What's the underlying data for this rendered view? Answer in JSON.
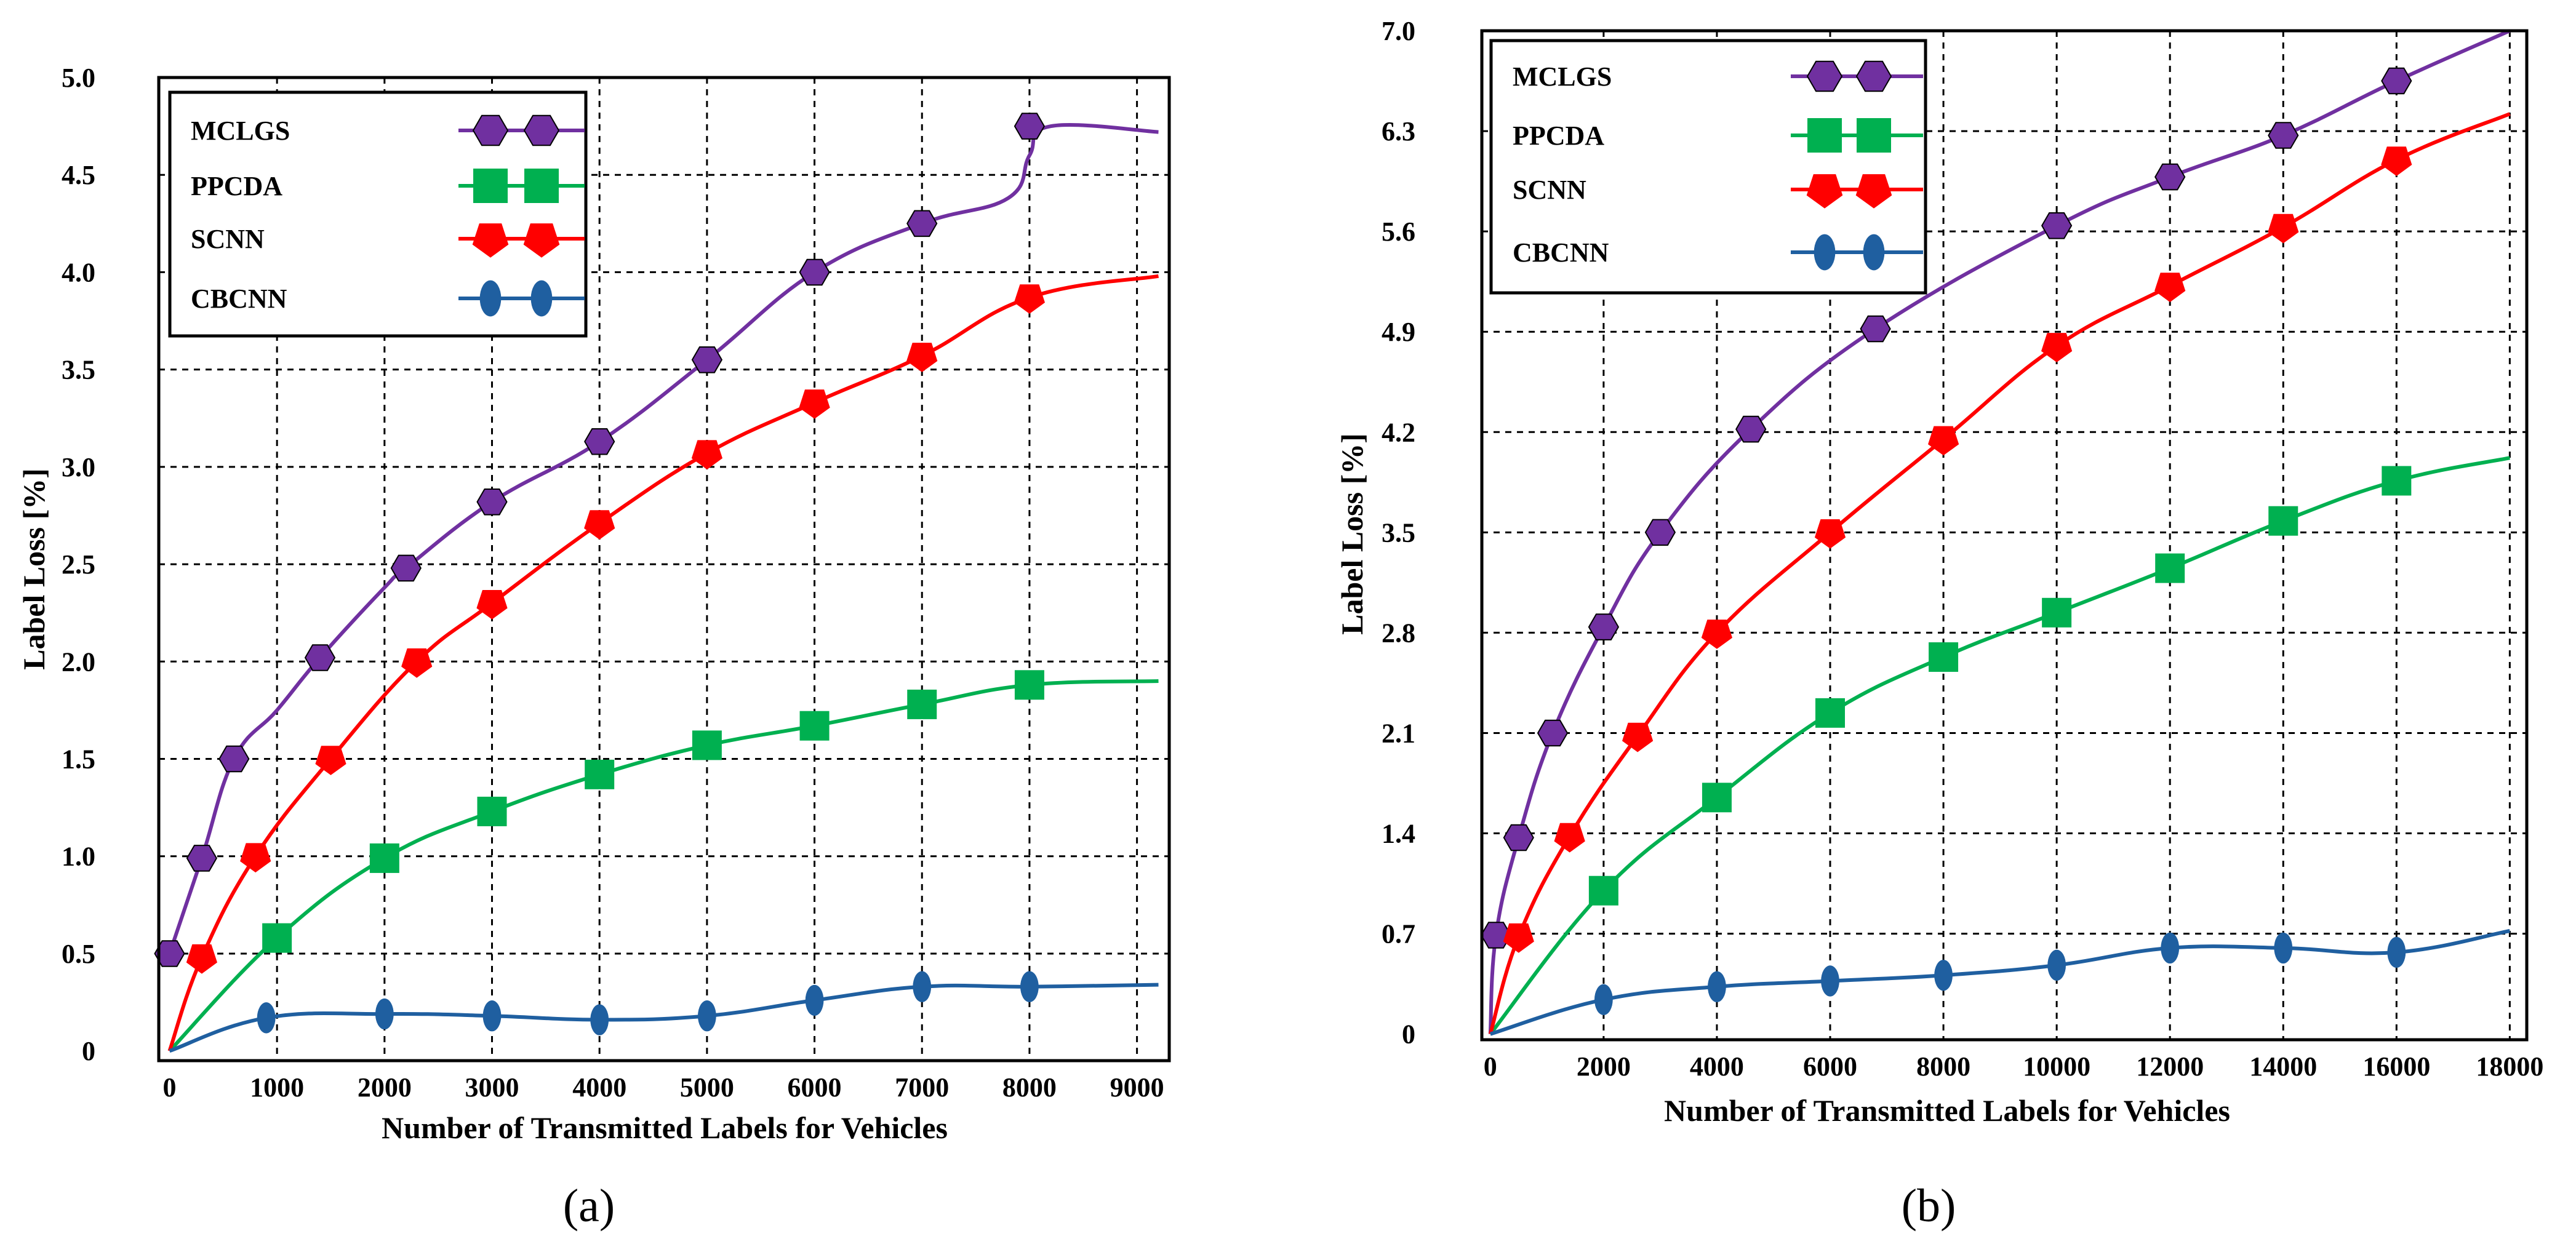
{
  "chart_data": [
    {
      "type": "line",
      "panel": "a",
      "caption": "(a)",
      "xlabel": "Number of Transmitted Labels for Vehicles",
      "ylabel": "Label Loss [%]",
      "xlim": [
        -100,
        9300
      ],
      "ylim": [
        -0.05,
        5.0
      ],
      "xticks": [
        0,
        1000,
        2000,
        3000,
        4000,
        5000,
        6000,
        7000,
        8000,
        9000
      ],
      "yticks": [
        {
          "v": 0,
          "label": "0"
        },
        {
          "v": 0.5,
          "label": "0.5"
        },
        {
          "v": 1.0,
          "label": "1.0"
        },
        {
          "v": 1.5,
          "label": "1.5"
        },
        {
          "v": 2.0,
          "label": "2.0"
        },
        {
          "v": 2.5,
          "label": "2.5"
        },
        {
          "v": 3.0,
          "label": "3.0"
        },
        {
          "v": 3.5,
          "label": "3.5"
        },
        {
          "v": 4.0,
          "label": "4.0"
        },
        {
          "v": 4.5,
          "label": "4.5"
        },
        {
          "v": 5.0,
          "label": "5.0"
        }
      ],
      "grid": true,
      "legend_position": "top-left",
      "series": [
        {
          "name": "MCLGS",
          "color": "#7030a0",
          "marker": "hexagon",
          "x": [
            0,
            300,
            600,
            1000,
            1400,
            2000,
            2200,
            3000,
            4000,
            5000,
            6000,
            7000,
            7800,
            8000,
            8200,
            9200
          ],
          "y": [
            0.5,
            0.99,
            1.5,
            1.75,
            2.02,
            2.38,
            2.48,
            2.82,
            3.13,
            3.55,
            4.0,
            4.25,
            4.38,
            4.6,
            4.75,
            4.72
          ],
          "mx": [
            0,
            300,
            600,
            1400,
            2200,
            3000,
            4000,
            5000,
            6000,
            7000,
            8000
          ],
          "my": [
            0.5,
            0.99,
            1.5,
            2.02,
            2.48,
            2.82,
            3.13,
            3.55,
            4.0,
            4.25,
            4.75
          ]
        },
        {
          "name": "PPCDA",
          "color": "#00b050",
          "marker": "square",
          "x": [
            0,
            1000,
            2000,
            3000,
            4000,
            5000,
            6000,
            7000,
            8000,
            9200
          ],
          "y": [
            0.0,
            0.58,
            0.99,
            1.23,
            1.42,
            1.57,
            1.67,
            1.78,
            1.88,
            1.9
          ],
          "mx": [
            1000,
            2000,
            3000,
            4000,
            5000,
            6000,
            7000,
            8000
          ],
          "my": [
            0.58,
            0.99,
            1.23,
            1.42,
            1.57,
            1.67,
            1.78,
            1.88
          ]
        },
        {
          "name": "SCNN",
          "color": "#ff0000",
          "marker": "pentagon-down",
          "x": [
            0,
            300,
            800,
            1500,
            2300,
            3000,
            4000,
            5000,
            6000,
            7000,
            8000,
            9200
          ],
          "y": [
            0.0,
            0.48,
            1.0,
            1.5,
            2.0,
            2.3,
            2.71,
            3.07,
            3.33,
            3.57,
            3.87,
            3.98
          ],
          "mx": [
            300,
            800,
            1500,
            2300,
            3000,
            4000,
            5000,
            6000,
            7000,
            8000
          ],
          "my": [
            0.48,
            1.0,
            1.5,
            2.0,
            2.3,
            2.71,
            3.07,
            3.33,
            3.57,
            3.87
          ]
        },
        {
          "name": "CBCNN",
          "color": "#1f5fa0",
          "marker": "ellipse",
          "x": [
            0,
            900,
            2000,
            3000,
            4000,
            5000,
            6000,
            7000,
            8000,
            9200
          ],
          "y": [
            0.0,
            0.17,
            0.19,
            0.18,
            0.16,
            0.18,
            0.26,
            0.33,
            0.33,
            0.34
          ],
          "mx": [
            900,
            2000,
            3000,
            4000,
            5000,
            6000,
            7000,
            8000
          ],
          "my": [
            0.17,
            0.19,
            0.18,
            0.16,
            0.18,
            0.26,
            0.33,
            0.33
          ]
        }
      ]
    },
    {
      "type": "line",
      "panel": "b",
      "caption": "(b)",
      "xlabel": "Number of Transmitted Labels for Vehicles",
      "ylabel": "Label Loss [%]",
      "xlim": [
        -150,
        18300
      ],
      "ylim": [
        -0.04,
        7.0
      ],
      "xticks": [
        0,
        2000,
        4000,
        6000,
        8000,
        10000,
        12000,
        14000,
        16000,
        18000
      ],
      "yticks": [
        {
          "v": 0,
          "label": "0"
        },
        {
          "v": 0.7,
          "label": "0.7"
        },
        {
          "v": 1.4,
          "label": "1.4"
        },
        {
          "v": 2.1,
          "label": "2.1"
        },
        {
          "v": 2.8,
          "label": "2.8"
        },
        {
          "v": 3.5,
          "label": "3.5"
        },
        {
          "v": 4.2,
          "label": "4.2"
        },
        {
          "v": 4.9,
          "label": "4.9"
        },
        {
          "v": 5.6,
          "label": "5.6"
        },
        {
          "v": 6.3,
          "label": "6.3"
        },
        {
          "v": 7.0,
          "label": "7.0"
        }
      ],
      "grid": true,
      "legend_position": "top-left",
      "series": [
        {
          "name": "MCLGS",
          "color": "#7030a0",
          "marker": "hexagon",
          "x": [
            0,
            100,
            500,
            1100,
            2000,
            3000,
            4600,
            6800,
            10000,
            12000,
            14000,
            16000,
            18000
          ],
          "y": [
            0.0,
            0.69,
            1.37,
            2.1,
            2.84,
            3.5,
            4.22,
            4.92,
            5.64,
            5.98,
            6.27,
            6.65,
            7.0
          ],
          "mx": [
            100,
            500,
            1100,
            2000,
            3000,
            4600,
            6800,
            10000,
            12000,
            14000,
            16000
          ],
          "my": [
            0.69,
            1.37,
            2.1,
            2.84,
            3.5,
            4.22,
            4.92,
            5.64,
            5.98,
            6.27,
            6.65
          ]
        },
        {
          "name": "PPCDA",
          "color": "#00b050",
          "marker": "square",
          "x": [
            0,
            2000,
            4000,
            6000,
            8000,
            10000,
            12000,
            14000,
            16000,
            18000
          ],
          "y": [
            0.0,
            1.0,
            1.65,
            2.24,
            2.63,
            2.94,
            3.25,
            3.58,
            3.86,
            4.02
          ],
          "mx": [
            2000,
            4000,
            6000,
            8000,
            10000,
            12000,
            14000,
            16000
          ],
          "my": [
            1.0,
            1.65,
            2.24,
            2.63,
            2.94,
            3.25,
            3.58,
            3.86
          ]
        },
        {
          "name": "SCNN",
          "color": "#ff0000",
          "marker": "pentagon-down",
          "x": [
            0,
            500,
            1400,
            2600,
            4000,
            6000,
            8000,
            10000,
            12000,
            14000,
            16000,
            18000
          ],
          "y": [
            0.0,
            0.68,
            1.38,
            2.08,
            2.8,
            3.5,
            4.15,
            4.8,
            5.22,
            5.63,
            6.1,
            6.42
          ],
          "mx": [
            500,
            1400,
            2600,
            4000,
            6000,
            8000,
            10000,
            12000,
            14000,
            16000
          ],
          "my": [
            0.68,
            1.38,
            2.08,
            2.8,
            3.5,
            4.15,
            4.8,
            5.22,
            5.63,
            6.1
          ]
        },
        {
          "name": "CBCNN",
          "color": "#1f5fa0",
          "marker": "ellipse",
          "x": [
            0,
            2000,
            4000,
            6000,
            8000,
            10000,
            12000,
            14000,
            16000,
            18000
          ],
          "y": [
            0.0,
            0.24,
            0.33,
            0.37,
            0.41,
            0.48,
            0.6,
            0.6,
            0.57,
            0.72
          ],
          "mx": [
            2000,
            4000,
            6000,
            8000,
            10000,
            12000,
            14000,
            16000
          ],
          "my": [
            0.24,
            0.33,
            0.37,
            0.41,
            0.48,
            0.6,
            0.6,
            0.57
          ]
        }
      ]
    }
  ]
}
